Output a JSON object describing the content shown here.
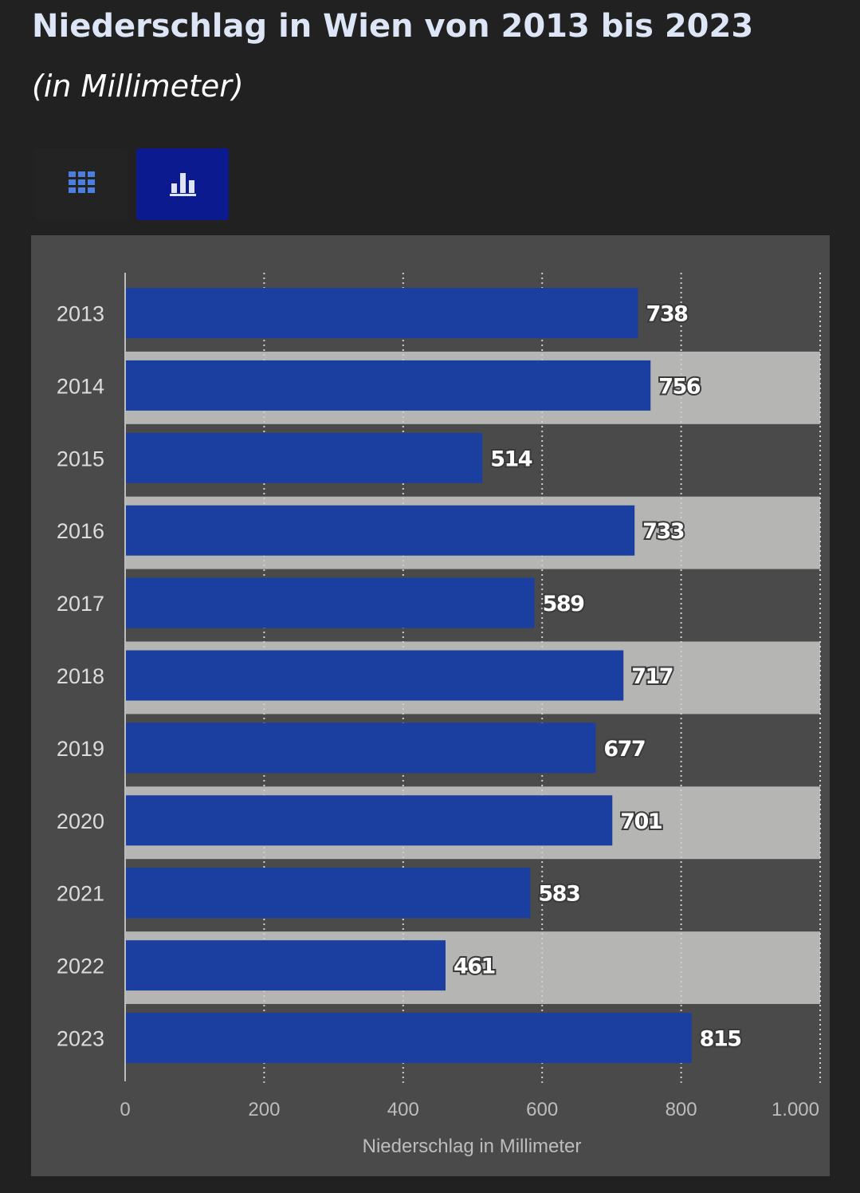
{
  "header": {
    "title": "Niederschlag in Wien von 2013 bis 2023",
    "subtitle": "(in Millimeter)"
  },
  "view_tabs": [
    {
      "icon": "table-grid-icon",
      "active": false
    },
    {
      "icon": "bar-chart-icon",
      "active": true
    }
  ],
  "colors": {
    "bar": "#1a3fa0",
    "band": "#b5b5b4",
    "panel": "#4a4a4a",
    "background": "#212121",
    "active_tab": "#0b1a8f",
    "grid_icon": "#4a7fe0"
  },
  "chart_data": {
    "type": "bar",
    "orientation": "horizontal",
    "categories": [
      "2013",
      "2014",
      "2015",
      "2016",
      "2017",
      "2018",
      "2019",
      "2020",
      "2021",
      "2022",
      "2023"
    ],
    "values": [
      738,
      756,
      514,
      733,
      589,
      717,
      677,
      701,
      583,
      461,
      815
    ],
    "value_labels": [
      "738",
      "756",
      "514",
      "733",
      "589",
      "717",
      "677",
      "701",
      "583",
      "461",
      "815"
    ],
    "x_ticks": [
      0,
      200,
      400,
      600,
      800,
      1000
    ],
    "x_tick_labels": [
      "0",
      "200",
      "400",
      "600",
      "800",
      "1.000"
    ],
    "xlim": [
      0,
      1000
    ],
    "xlabel": "Niederschlag in Millimeter",
    "grid": "vertical dotted",
    "alternating_row_bands": true,
    "data_labels": true
  }
}
